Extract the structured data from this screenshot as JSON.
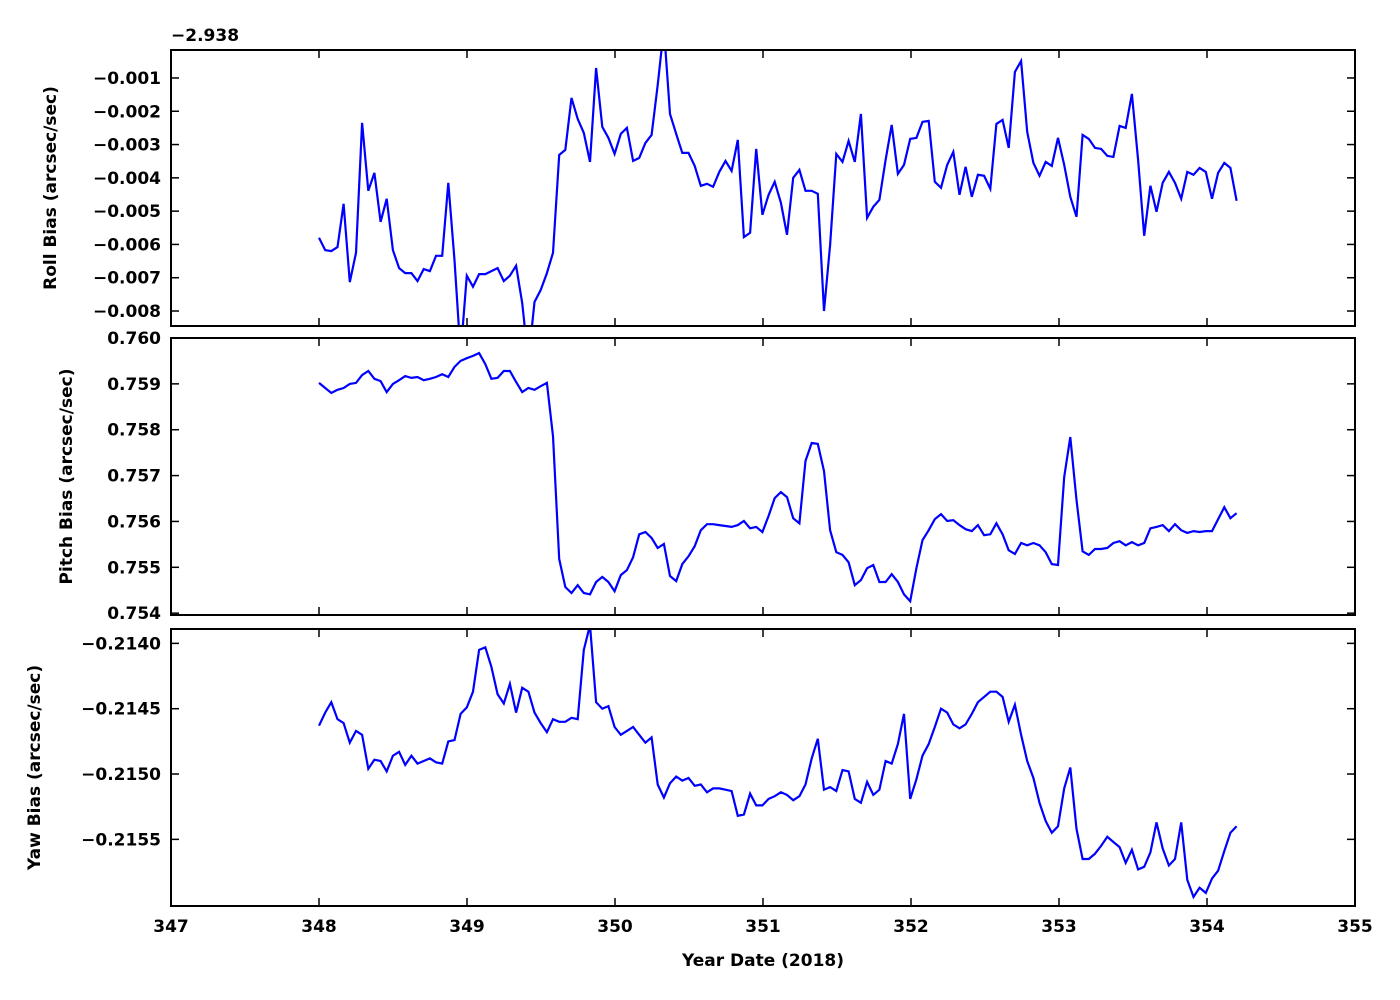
{
  "chart_data": [
    {
      "type": "line",
      "ylabel": "Roll Bias (arcsec/sec)",
      "offset_text": "−2.938",
      "offset": -2.938,
      "xlim": [
        347,
        355
      ],
      "ylim": [
        -0.00845,
        -0.00016
      ],
      "x_range": [
        348.0,
        354.2
      ],
      "yticks": [
        -0.001,
        -0.002,
        -0.003,
        -0.004,
        -0.005,
        -0.006,
        -0.007,
        -0.008
      ],
      "ytick_labels": [
        "−0.001",
        "−0.002",
        "−0.003",
        "−0.004",
        "−0.005",
        "−0.006",
        "−0.007",
        "−0.008"
      ],
      "color": "#0000ff",
      "values": [
        -0.0058,
        -0.00617,
        -0.0062,
        -0.00608,
        -0.00478,
        -0.00713,
        -0.00625,
        -0.00235,
        -0.00439,
        -0.00385,
        -0.00532,
        -0.00463,
        -0.00617,
        -0.00671,
        -0.00686,
        -0.00686,
        -0.0071,
        -0.00674,
        -0.0068,
        -0.00634,
        -0.00634,
        -0.00415,
        -0.00647,
        -0.0093,
        -0.00694,
        -0.00727,
        -0.00689,
        -0.00689,
        -0.0068,
        -0.00671,
        -0.0071,
        -0.00694,
        -0.00664,
        -0.00776,
        -0.0095,
        -0.00773,
        -0.00737,
        -0.00686,
        -0.00625,
        -0.00331,
        -0.00316,
        -0.0016,
        -0.00223,
        -0.00265,
        -0.00352,
        -0.0007,
        -0.00247,
        -0.0028,
        -0.00328,
        -0.00268,
        -0.0025,
        -0.00349,
        -0.0034,
        -0.00295,
        -0.00271,
        -0.00121,
        0.0005,
        -0.00208,
        -0.00268,
        -0.00325,
        -0.00325,
        -0.00364,
        -0.00424,
        -0.00418,
        -0.00427,
        -0.00382,
        -0.00349,
        -0.00379,
        -0.00286,
        -0.00578,
        -0.00565,
        -0.00313,
        -0.00511,
        -0.00451,
        -0.00412,
        -0.00475,
        -0.00571,
        -0.004,
        -0.00376,
        -0.00439,
        -0.00439,
        -0.00448,
        -0.008,
        -0.00602,
        -0.00328,
        -0.00352,
        -0.00289,
        -0.00352,
        -0.00208,
        -0.0052,
        -0.00487,
        -0.00466,
        -0.00346,
        -0.00241,
        -0.00388,
        -0.00361,
        -0.00283,
        -0.0028,
        -0.00232,
        -0.00229,
        -0.00412,
        -0.0043,
        -0.00361,
        -0.00322,
        -0.00451,
        -0.00367,
        -0.00457,
        -0.00391,
        -0.00394,
        -0.00433,
        -0.00238,
        -0.00226,
        -0.0031,
        -0.00082,
        -0.00049,
        -0.00262,
        -0.00355,
        -0.00394,
        -0.00352,
        -0.00364,
        -0.0028,
        -0.00361,
        -0.00457,
        -0.00517,
        -0.00271,
        -0.00283,
        -0.0031,
        -0.00313,
        -0.00334,
        -0.00337,
        -0.00244,
        -0.0025,
        -0.00148,
        -0.00346,
        -0.00574,
        -0.00424,
        -0.00502,
        -0.00415,
        -0.00382,
        -0.00415,
        -0.00463,
        -0.00382,
        -0.00391,
        -0.0037,
        -0.00382,
        -0.00463,
        -0.00385,
        -0.00355,
        -0.0037,
        -0.00469
      ]
    },
    {
      "type": "line",
      "ylabel": "Pitch Bias (arcsec/sec)",
      "xlim": [
        347,
        355
      ],
      "ylim": [
        0.75396,
        0.76
      ],
      "x_range": [
        348.0,
        354.2
      ],
      "yticks": [
        0.754,
        0.755,
        0.756,
        0.757,
        0.758,
        0.759,
        0.76
      ],
      "ytick_labels": [
        "0.754",
        "0.755",
        "0.756",
        "0.757",
        "0.758",
        "0.759",
        "0.760"
      ],
      "color": "#0000ff",
      "values": [
        0.75902,
        0.75891,
        0.7588,
        0.75887,
        0.75891,
        0.759,
        0.75902,
        0.75919,
        0.75928,
        0.75911,
        0.75906,
        0.75882,
        0.759,
        0.75908,
        0.75917,
        0.75913,
        0.75915,
        0.75908,
        0.75911,
        0.75915,
        0.75921,
        0.75915,
        0.75937,
        0.7595,
        0.75956,
        0.75961,
        0.75967,
        0.75943,
        0.75911,
        0.75913,
        0.75928,
        0.75928,
        0.75904,
        0.75882,
        0.75891,
        0.75887,
        0.75895,
        0.75902,
        0.75786,
        0.75518,
        0.75457,
        0.75444,
        0.75461,
        0.75444,
        0.75441,
        0.75468,
        0.75479,
        0.75468,
        0.75448,
        0.75483,
        0.75494,
        0.75522,
        0.75572,
        0.75577,
        0.75564,
        0.75542,
        0.75551,
        0.75481,
        0.7547,
        0.75507,
        0.75524,
        0.75546,
        0.75581,
        0.75594,
        0.75594,
        0.75592,
        0.7559,
        0.75588,
        0.75592,
        0.75601,
        0.75585,
        0.75588,
        0.75577,
        0.75612,
        0.75651,
        0.75664,
        0.75653,
        0.75607,
        0.75596,
        0.75732,
        0.75771,
        0.75769,
        0.7571,
        0.75581,
        0.75533,
        0.75527,
        0.75511,
        0.75461,
        0.75472,
        0.75498,
        0.75505,
        0.75468,
        0.75468,
        0.75485,
        0.75468,
        0.75441,
        0.75426,
        0.75498,
        0.75559,
        0.75581,
        0.75605,
        0.75616,
        0.75601,
        0.75603,
        0.75592,
        0.75583,
        0.75579,
        0.75592,
        0.7557,
        0.75572,
        0.75596,
        0.75572,
        0.75537,
        0.75529,
        0.75553,
        0.75548,
        0.75553,
        0.75548,
        0.75533,
        0.75507,
        0.75505,
        0.75697,
        0.75784,
        0.75647,
        0.75535,
        0.75527,
        0.7554,
        0.7554,
        0.75542,
        0.75553,
        0.75557,
        0.75548,
        0.75555,
        0.75548,
        0.75553,
        0.75585,
        0.75588,
        0.75592,
        0.75579,
        0.75594,
        0.75581,
        0.75575,
        0.75579,
        0.75577,
        0.75579,
        0.75579,
        0.75605,
        0.75631,
        0.75607,
        0.75618
      ]
    },
    {
      "type": "line",
      "ylabel": "Yaw Bias (arcsec/sec)",
      "xlabel": "Year Date (2018)",
      "xlim": [
        347,
        355
      ],
      "ylim": [
        -0.21601,
        -0.21389
      ],
      "x_range": [
        348.0,
        354.2
      ],
      "xticks": [
        347,
        348,
        349,
        350,
        351,
        352,
        353,
        354,
        355
      ],
      "xtick_labels": [
        "347",
        "348",
        "349",
        "350",
        "351",
        "352",
        "353",
        "354",
        "355"
      ],
      "yticks": [
        -0.214,
        -0.2145,
        -0.215,
        -0.2155
      ],
      "ytick_labels": [
        "−0.2140",
        "−0.2145",
        "−0.2150",
        "−0.2155"
      ],
      "color": "#0000ff",
      "values": [
        -0.21463,
        -0.21453,
        -0.21445,
        -0.21458,
        -0.21461,
        -0.21476,
        -0.21467,
        -0.2147,
        -0.21496,
        -0.21489,
        -0.2149,
        -0.21498,
        -0.21486,
        -0.21483,
        -0.21493,
        -0.21486,
        -0.21492,
        -0.2149,
        -0.21488,
        -0.21491,
        -0.21492,
        -0.21475,
        -0.21474,
        -0.21454,
        -0.21449,
        -0.21437,
        -0.21405,
        -0.21403,
        -0.21418,
        -0.21439,
        -0.21446,
        -0.21431,
        -0.21453,
        -0.21434,
        -0.21437,
        -0.21453,
        -0.21461,
        -0.21468,
        -0.21458,
        -0.2146,
        -0.2146,
        -0.21457,
        -0.21458,
        -0.21405,
        -0.21386,
        -0.21445,
        -0.2145,
        -0.21448,
        -0.21464,
        -0.2147,
        -0.21467,
        -0.21464,
        -0.2147,
        -0.21476,
        -0.21472,
        -0.21508,
        -0.21518,
        -0.21507,
        -0.21502,
        -0.21505,
        -0.21503,
        -0.21509,
        -0.21508,
        -0.21514,
        -0.21511,
        -0.21511,
        -0.21512,
        -0.21513,
        -0.21532,
        -0.21531,
        -0.21515,
        -0.21524,
        -0.21524,
        -0.21519,
        -0.21517,
        -0.21514,
        -0.21516,
        -0.2152,
        -0.21517,
        -0.21508,
        -0.21488,
        -0.21473,
        -0.21512,
        -0.2151,
        -0.21513,
        -0.21497,
        -0.21498,
        -0.21519,
        -0.21522,
        -0.21506,
        -0.21516,
        -0.21512,
        -0.2149,
        -0.21492,
        -0.21477,
        -0.21454,
        -0.21519,
        -0.21504,
        -0.21486,
        -0.21477,
        -0.21464,
        -0.2145,
        -0.21453,
        -0.21462,
        -0.21465,
        -0.21462,
        -0.21454,
        -0.21445,
        -0.21441,
        -0.21437,
        -0.21437,
        -0.21441,
        -0.2146,
        -0.21447,
        -0.2147,
        -0.2149,
        -0.21503,
        -0.21522,
        -0.21536,
        -0.21545,
        -0.2154,
        -0.21511,
        -0.21495,
        -0.21542,
        -0.21565,
        -0.21565,
        -0.21561,
        -0.21555,
        -0.21548,
        -0.21552,
        -0.21556,
        -0.21568,
        -0.21558,
        -0.21573,
        -0.21571,
        -0.2156,
        -0.21537,
        -0.21557,
        -0.2157,
        -0.21565,
        -0.21537,
        -0.21581,
        -0.21594,
        -0.21587,
        -0.21591,
        -0.2158,
        -0.21574,
        -0.21559,
        -0.21545,
        -0.2154
      ]
    }
  ]
}
